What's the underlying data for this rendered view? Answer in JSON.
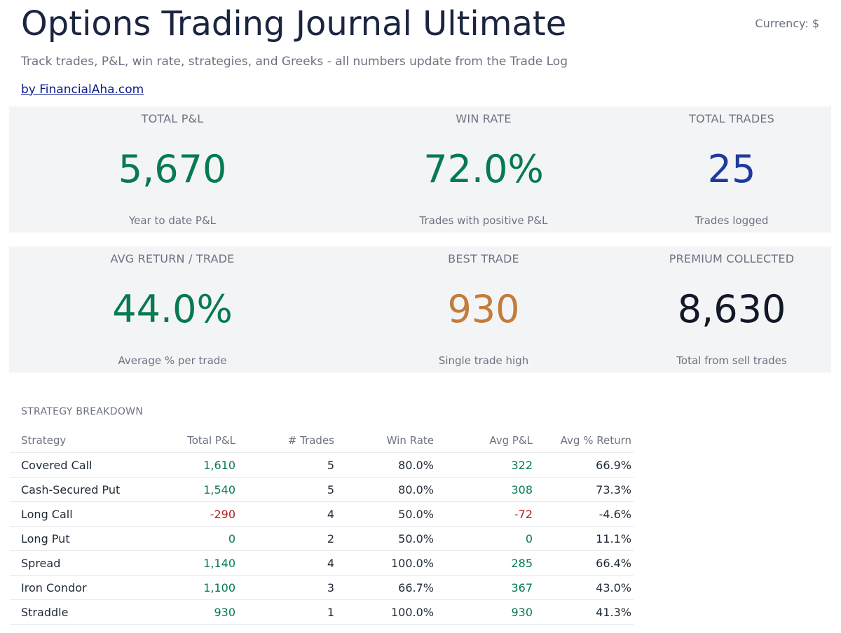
{
  "header": {
    "title": "Options Trading Journal Ultimate",
    "currency": "Currency: $",
    "subtitle": "Track trades, P&L, win rate, strategies, and Greeks - all numbers update from the Trade Log",
    "author_link": "by FinancialAha.com"
  },
  "kpis": [
    {
      "label": "TOTAL P&L",
      "value": "5,670",
      "note": "Year to date P&L",
      "color": "#067a52"
    },
    {
      "label": "WIN RATE",
      "value": "72.0%",
      "note": "Trades with positive P&L",
      "color": "#067a52"
    },
    {
      "label": "TOTAL TRADES",
      "value": "25",
      "note": "Trades logged",
      "color": "#1e3a9e"
    },
    {
      "label": "AVG RETURN / TRADE",
      "value": "44.0%",
      "note": "Average % per trade",
      "color": "#067a52"
    },
    {
      "label": "BEST TRADE",
      "value": "930",
      "note": "Single trade high",
      "color": "#c27c3b"
    },
    {
      "label": "PREMIUM COLLECTED",
      "value": "8,630",
      "note": "Total from sell trades",
      "color": "#111827"
    }
  ],
  "breakdown": {
    "title": "STRATEGY BREAKDOWN",
    "columns": [
      "Strategy",
      "Total P&L",
      "# Trades",
      "Win Rate",
      "Avg P&L",
      "Avg % Return"
    ],
    "rows": [
      {
        "strategy": "Covered Call",
        "total_pl": "1,610",
        "trades": "5",
        "win_rate": "80.0%",
        "avg_pl": "322",
        "avg_return": "66.9%",
        "sign": "pos"
      },
      {
        "strategy": "Cash-Secured Put",
        "total_pl": "1,540",
        "trades": "5",
        "win_rate": "80.0%",
        "avg_pl": "308",
        "avg_return": "73.3%",
        "sign": "pos"
      },
      {
        "strategy": "Long Call",
        "total_pl": "-290",
        "trades": "4",
        "win_rate": "50.0%",
        "avg_pl": "-72",
        "avg_return": "-4.6%",
        "sign": "neg"
      },
      {
        "strategy": "Long Put",
        "total_pl": "0",
        "trades": "2",
        "win_rate": "50.0%",
        "avg_pl": "0",
        "avg_return": "11.1%",
        "sign": "pos"
      },
      {
        "strategy": "Spread",
        "total_pl": "1,140",
        "trades": "4",
        "win_rate": "100.0%",
        "avg_pl": "285",
        "avg_return": "66.4%",
        "sign": "pos"
      },
      {
        "strategy": "Iron Condor",
        "total_pl": "1,100",
        "trades": "3",
        "win_rate": "66.7%",
        "avg_pl": "367",
        "avg_return": "43.0%",
        "sign": "pos"
      },
      {
        "strategy": "Straddle",
        "total_pl": "930",
        "trades": "1",
        "win_rate": "100.0%",
        "avg_pl": "930",
        "avg_return": "41.3%",
        "sign": "pos"
      }
    ]
  }
}
